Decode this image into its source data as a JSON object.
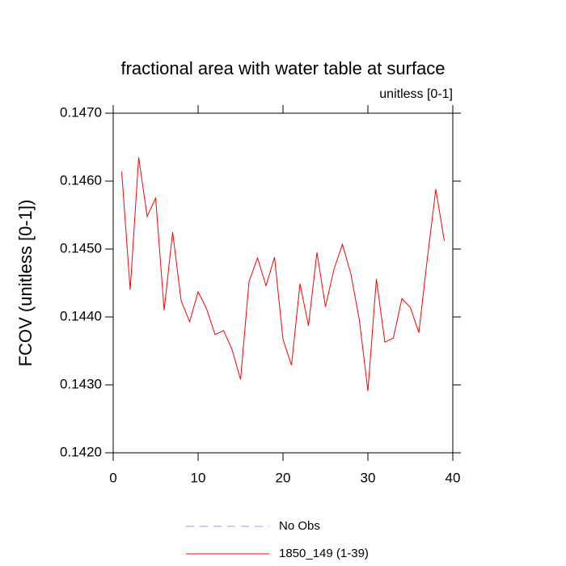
{
  "chart_data": {
    "type": "line",
    "title": "fractional area with water table at surface",
    "subtitle": "unitless [0-1]",
    "y_label": "FCOV  (unitless [0-1])",
    "x": [
      1,
      2,
      3,
      4,
      5,
      6,
      7,
      8,
      9,
      10,
      11,
      12,
      13,
      14,
      15,
      16,
      17,
      18,
      19,
      20,
      21,
      22,
      23,
      24,
      25,
      26,
      27,
      28,
      29,
      30,
      31,
      32,
      33,
      34,
      35,
      36,
      37,
      38,
      39
    ],
    "series": [
      {
        "name": "No Obs",
        "color": "#9999ff",
        "dash": true,
        "values": [
          null,
          null,
          null,
          null,
          null,
          null,
          null,
          null,
          null,
          null,
          null,
          null,
          null,
          null,
          null,
          null,
          null,
          null,
          null,
          null,
          null,
          null,
          null,
          null,
          null,
          null,
          null,
          null,
          null,
          null,
          null,
          null,
          null,
          null,
          null,
          null,
          null,
          null,
          null
        ]
      },
      {
        "name": "1850_149 (1-39)",
        "color": "#ff0000",
        "dash": false,
        "values": [
          0.14614,
          0.1444,
          0.14635,
          0.14548,
          0.14575,
          0.1441,
          0.14525,
          0.14424,
          0.14393,
          0.14437,
          0.14412,
          0.14374,
          0.1438,
          0.14352,
          0.14308,
          0.14452,
          0.14487,
          0.14446,
          0.14488,
          0.14367,
          0.14329,
          0.14449,
          0.14387,
          0.14495,
          0.14415,
          0.1447,
          0.14507,
          0.14463,
          0.14395,
          0.14291,
          0.14456,
          0.14363,
          0.14369,
          0.14427,
          0.14414,
          0.14377,
          0.14486,
          0.14588,
          0.14512
        ]
      }
    ],
    "xlim": [
      0,
      40
    ],
    "xticks": [
      0,
      10,
      20,
      30,
      40
    ],
    "ylim": [
      0.142,
      0.147
    ],
    "yticks": [
      {
        "value": 0.142,
        "label": "0.1420"
      },
      {
        "value": 0.143,
        "label": "0.1430"
      },
      {
        "value": 0.144,
        "label": "0.1440"
      },
      {
        "value": 0.145,
        "label": "0.1450"
      },
      {
        "value": 0.146,
        "label": "0.1460"
      },
      {
        "value": 0.147,
        "label": "0.1470"
      }
    ],
    "grid": false
  }
}
